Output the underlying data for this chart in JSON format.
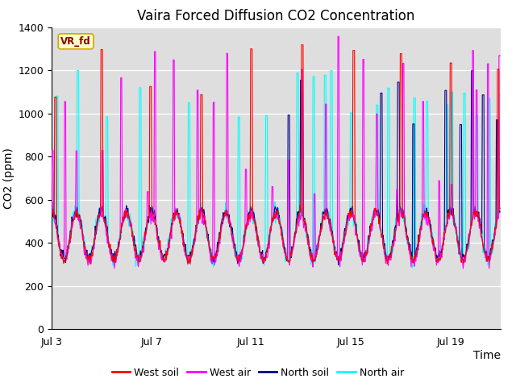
{
  "title": "Vaira Forced Diffusion CO2 Concentration",
  "xlabel": "Time",
  "ylabel": "CO2 (ppm)",
  "ylim": [
    0,
    1400
  ],
  "yticks": [
    0,
    200,
    400,
    600,
    800,
    1000,
    1200,
    1400
  ],
  "xlim_days": [
    3,
    21
  ],
  "xtick_days": [
    3,
    7,
    11,
    15,
    19
  ],
  "xtick_labels": [
    "Jul 3",
    "Jul 7",
    "Jul 11",
    "Jul 15",
    "Jul 19"
  ],
  "legend_labels": [
    "West soil",
    "West air",
    "North soil",
    "North air"
  ],
  "legend_colors": [
    "#ff0000",
    "#ff00ff",
    "#00008b",
    "#00ffff"
  ],
  "vr_fd_label": "VR_fd",
  "vr_fd_fg": "#8b0000",
  "vr_fd_bg": "#ffffcc",
  "vr_fd_edge": "#ccaa00",
  "bg_color": "#dedede",
  "grid_color": "#ffffff",
  "title_fontsize": 12,
  "axis_label_fontsize": 10,
  "tick_fontsize": 9,
  "legend_fontsize": 9,
  "seed": 42,
  "n_days": 18,
  "start_day": 3,
  "pts_per_day": 48
}
